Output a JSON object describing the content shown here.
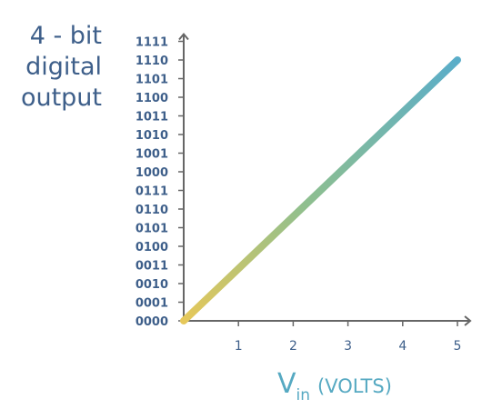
{
  "chart_data": {
    "type": "line",
    "title_lines": [
      "4 - bit",
      "digital",
      "output"
    ],
    "xlabel": {
      "main": "V",
      "sub": "in",
      "unit": "(VOLTS)"
    },
    "x_ticks": [
      "1",
      "2",
      "3",
      "4",
      "5"
    ],
    "y_ticks": [
      "0000",
      "0001",
      "0010",
      "0011",
      "0100",
      "0101",
      "0110",
      "0111",
      "1000",
      "1001",
      "1010",
      "1011",
      "1100",
      "1101",
      "1110",
      "1111"
    ],
    "series": [
      {
        "x": [
          0,
          5
        ],
        "y": [
          0,
          14
        ]
      }
    ],
    "xlim": [
      0,
      5.2
    ],
    "ylim": [
      0,
      15
    ],
    "grid": false,
    "colors": {
      "line_start": "#e6c85a",
      "line_mid": "#8ebf8f",
      "line_end": "#5aadc9",
      "axis": "#666666",
      "title": "#3e5f8a",
      "xlabel": "#56a9c2"
    }
  }
}
